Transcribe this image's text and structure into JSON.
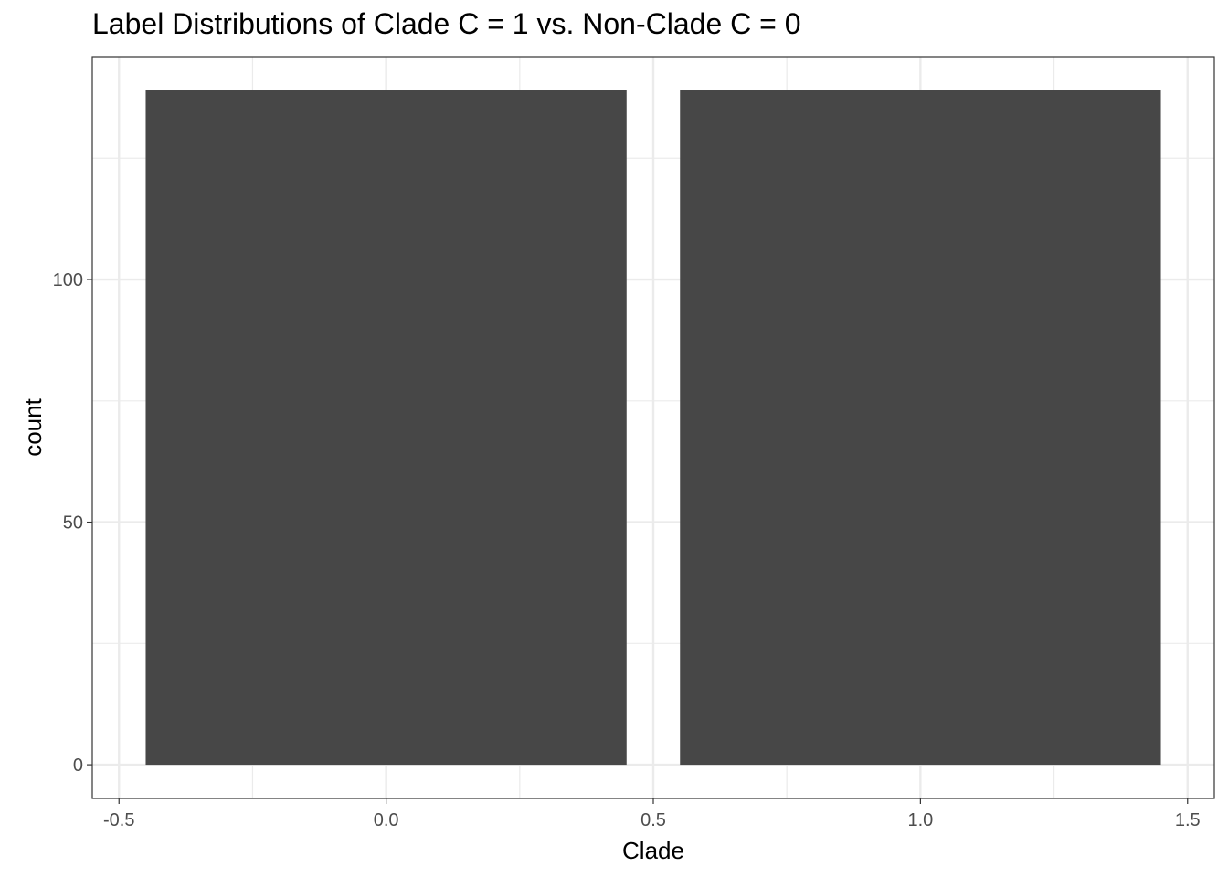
{
  "chart_data": {
    "type": "bar",
    "title": "Label Distributions of Clade C = 1 vs. Non-Clade C = 0",
    "xlabel": "Clade",
    "ylabel": "count",
    "categories": [
      0,
      1
    ],
    "values": [
      139,
      139
    ],
    "bar_width": 0.9,
    "xlim": [
      -0.55,
      1.55
    ],
    "ylim": [
      -6.95,
      145.95
    ],
    "x_ticks": [
      -0.5,
      0.0,
      0.5,
      1.0,
      1.5
    ],
    "x_tick_labels": [
      "-0.5",
      "0.0",
      "0.5",
      "1.0",
      "1.5"
    ],
    "x_minor_ticks": [
      -0.25,
      0.25,
      0.75,
      1.25
    ],
    "y_ticks": [
      0,
      50,
      100
    ],
    "y_tick_labels": [
      "0",
      "50",
      "100"
    ],
    "y_minor_ticks": [
      25,
      75,
      125
    ],
    "grid": true,
    "bar_color": "#474747",
    "grid_color": "#ebebeb",
    "panel_border_color": "#333333"
  }
}
